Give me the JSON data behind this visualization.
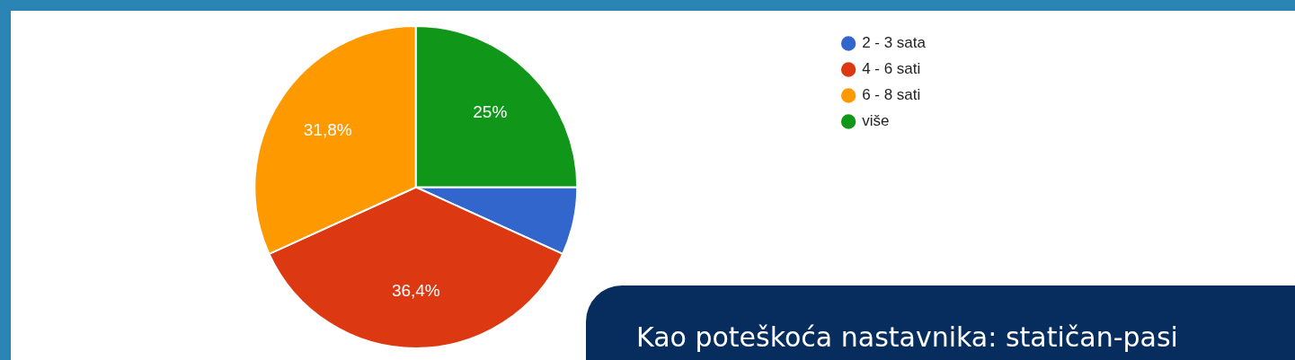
{
  "chart_data": {
    "type": "pie",
    "categories": [
      "2 - 3 sata",
      "4 - 6 sati",
      "6 - 8 sati",
      "više"
    ],
    "values": [
      6.8,
      36.4,
      31.8,
      25
    ],
    "colors": [
      "#3366cc",
      "#dc3912",
      "#ff9900",
      "#109618"
    ],
    "value_labels": [
      null,
      "36,4%",
      "31,8%",
      "25%"
    ],
    "legend": "top right",
    "annotations": [
      "Kao poteškoća nastavnika: statičan-pasi"
    ]
  }
}
